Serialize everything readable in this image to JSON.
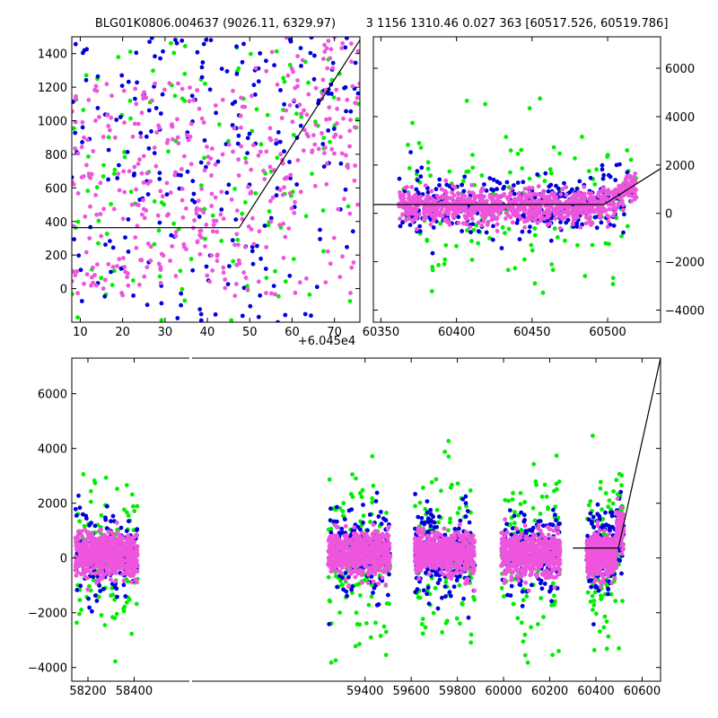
{
  "title_left": "BLG01K0806.004637 (9026.11, 6329.97)",
  "title_right": "3 1156 1310.46 0.027 363 [60517.526, 60519.786]",
  "colors": {
    "green": "#00ee00",
    "blue": "#0000dd",
    "magenta": "#ee55dd",
    "line": "#000000"
  },
  "chart_data": [
    {
      "type": "scatter",
      "panel": "top-left zoom",
      "title": "",
      "xlabel": "",
      "ylabel": "",
      "x_offset_label": "+6.045e4",
      "xlim": [
        8,
        76
      ],
      "ylim": [
        -200,
        1500
      ],
      "xticks": [
        10,
        20,
        30,
        40,
        50,
        60,
        70
      ],
      "yticks": [
        0,
        200,
        400,
        600,
        800,
        1000,
        1200,
        1400
      ],
      "series": [
        {
          "color": "green",
          "n": 140
        },
        {
          "color": "blue",
          "n": 230
        },
        {
          "color": "magenta",
          "n": 420
        }
      ],
      "model_line": {
        "x": [
          8,
          47.5,
          76
        ],
        "y": [
          363,
          363,
          1480
        ]
      }
    },
    {
      "type": "scatter",
      "panel": "top-right",
      "title": "",
      "xlabel": "",
      "ylabel": "",
      "xlim": [
        60345,
        60535
      ],
      "ylim": [
        -4500,
        7300
      ],
      "xticks": [
        60350,
        60400,
        60450,
        60500
      ],
      "yticks": [
        -4000,
        -2000,
        0,
        2000,
        4000,
        6000
      ],
      "y_axis_side": "right",
      "series": [
        {
          "color": "green",
          "n": 160
        },
        {
          "color": "blue",
          "n": 330
        },
        {
          "color": "magenta",
          "n": 900
        }
      ],
      "model_line": {
        "x": [
          60345,
          60497.5,
          60535
        ],
        "y": [
          363,
          363,
          1850
        ]
      }
    },
    {
      "type": "scatter",
      "panel": "bottom",
      "title": "",
      "xlabel": "",
      "ylabel": "",
      "xlim": [
        58130,
        60680
      ],
      "ylim": [
        -4500,
        7300
      ],
      "xticks": [
        58200,
        58400,
        59400,
        59600,
        59800,
        60000,
        60200,
        60400,
        60600
      ],
      "yticks": [
        -4000,
        -2000,
        0,
        2000,
        4000,
        6000
      ],
      "seasons": [
        {
          "x0": 58145,
          "x1": 58415
        },
        {
          "x0": 59240,
          "x1": 59510
        },
        {
          "x0": 59615,
          "x1": 59875
        },
        {
          "x0": 59990,
          "x1": 60245
        },
        {
          "x0": 60360,
          "x1": 60520
        }
      ],
      "series": [
        {
          "color": "green",
          "n": 620
        },
        {
          "color": "blue",
          "n": 900
        },
        {
          "color": "magenta",
          "n": 3000
        }
      ],
      "model_line": {
        "x": [
          60300,
          60497.5,
          60680
        ],
        "y": [
          363,
          363,
          7300
        ]
      }
    }
  ]
}
